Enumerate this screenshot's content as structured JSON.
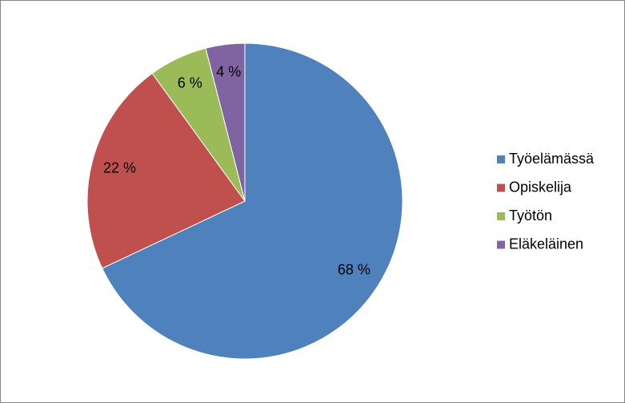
{
  "chart_data": {
    "type": "pie",
    "categories": [
      "Työelämässä",
      "Opiskelija",
      "Työtön",
      "Eläkeläinen"
    ],
    "values": [
      68,
      22,
      6,
      4
    ],
    "value_labels": [
      "68 %",
      "22 %",
      "6 %",
      "4 %"
    ],
    "colors": [
      "#4f81bd",
      "#c0504d",
      "#9bbb59",
      "#8064a2"
    ],
    "legend": "right"
  }
}
